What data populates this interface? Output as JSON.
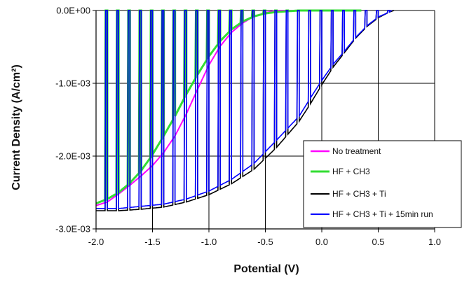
{
  "chart_data": {
    "type": "line",
    "title": "",
    "xlabel": "Potential (V)",
    "ylabel": "Current Density (A/cm²)",
    "xlim": [
      -2.0,
      1.0
    ],
    "ylim": [
      -0.003,
      0.0
    ],
    "grid": true,
    "legend_position": "bottom-right",
    "x_ticks": [
      -2.0,
      -1.5,
      -1.0,
      -0.5,
      0.0,
      0.5,
      1.0
    ],
    "x_tick_labels": [
      "-2.0",
      "-1.5",
      "-1.0",
      "-0.5",
      "0.0",
      "0.5",
      "1.0"
    ],
    "y_ticks": [
      0.0,
      -0.001,
      -0.002,
      -0.003
    ],
    "y_tick_labels": [
      "0.0E+00",
      "-1.0E-03",
      "-2.0E-03",
      "-3.0E-03"
    ],
    "series": [
      {
        "name": "No treatment",
        "color": "#ff00ff",
        "points": [
          [
            -2.0,
            -0.00268
          ],
          [
            -1.9,
            -0.00263
          ],
          [
            -1.8,
            -0.00252
          ],
          [
            -1.7,
            -0.0024
          ],
          [
            -1.6,
            -0.00227
          ],
          [
            -1.5,
            -0.00213
          ],
          [
            -1.4,
            -0.00195
          ],
          [
            -1.3,
            -0.00172
          ],
          [
            -1.2,
            -0.00142
          ],
          [
            -1.1,
            -0.00108
          ],
          [
            -1.0,
            -0.00075
          ],
          [
            -0.9,
            -0.00049
          ],
          [
            -0.8,
            -0.0003
          ],
          [
            -0.7,
            -0.00017
          ],
          [
            -0.6,
            -8e-05
          ],
          [
            -0.5,
            -3e-05
          ],
          [
            -0.4,
            0.0
          ],
          [
            -0.3,
            0.0
          ],
          [
            -0.2,
            0.0
          ],
          [
            0.0,
            0.0
          ]
        ]
      },
      {
        "name": "HF + CH3",
        "color": "#33dd33",
        "dark_value": 0.0,
        "light_envelope": [
          [
            -2.0,
            -0.00265
          ],
          [
            -1.9,
            -0.00259
          ],
          [
            -1.8,
            -0.0025
          ],
          [
            -1.7,
            -0.00237
          ],
          [
            -1.6,
            -0.0022
          ],
          [
            -1.5,
            -0.00198
          ],
          [
            -1.4,
            -0.00172
          ],
          [
            -1.3,
            -0.00145
          ],
          [
            -1.2,
            -0.00115
          ],
          [
            -1.1,
            -0.00088
          ],
          [
            -1.0,
            -0.00063
          ],
          [
            -0.9,
            -0.00042
          ],
          [
            -0.8,
            -0.00026
          ],
          [
            -0.7,
            -0.00015
          ],
          [
            -0.6,
            -8e-05
          ],
          [
            -0.5,
            -4e-05
          ],
          [
            -0.4,
            -2e-05
          ],
          [
            -0.3,
            -1e-05
          ],
          [
            -0.2,
            0.0
          ],
          [
            0.35,
            0.0
          ]
        ]
      },
      {
        "name": "HF + CH3 + Ti",
        "color": "#000000",
        "dark_value": 0.0,
        "light_envelope": [
          [
            -2.0,
            -0.00275
          ],
          [
            -1.8,
            -0.00275
          ],
          [
            -1.6,
            -0.00273
          ],
          [
            -1.4,
            -0.0027
          ],
          [
            -1.2,
            -0.00263
          ],
          [
            -1.0,
            -0.00253
          ],
          [
            -0.8,
            -0.00238
          ],
          [
            -0.6,
            -0.00218
          ],
          [
            -0.4,
            -0.00188
          ],
          [
            -0.2,
            -0.00152
          ],
          [
            -0.1,
            -0.00128
          ],
          [
            0.0,
            -0.00102
          ],
          [
            0.1,
            -0.00078
          ],
          [
            0.2,
            -0.00058
          ],
          [
            0.3,
            -0.00038
          ],
          [
            0.4,
            -0.00022
          ],
          [
            0.5,
            -0.0001
          ],
          [
            0.6,
            -2e-05
          ],
          [
            0.64,
            0.0
          ]
        ]
      },
      {
        "name": "HF + CH3 + Ti + 15min run",
        "color": "#0000ff",
        "dark_value": 0.0,
        "light_envelope": [
          [
            -2.0,
            -0.00272
          ],
          [
            -1.8,
            -0.00272
          ],
          [
            -1.6,
            -0.00269
          ],
          [
            -1.4,
            -0.00266
          ],
          [
            -1.2,
            -0.00259
          ],
          [
            -1.0,
            -0.00248
          ],
          [
            -0.8,
            -0.00232
          ],
          [
            -0.6,
            -0.0021
          ],
          [
            -0.4,
            -0.00178
          ],
          [
            -0.2,
            -0.00145
          ],
          [
            -0.1,
            -0.0012
          ],
          [
            0.0,
            -0.00096
          ],
          [
            0.1,
            -0.00074
          ],
          [
            0.2,
            -0.00056
          ],
          [
            0.3,
            -0.00037
          ],
          [
            0.4,
            -0.00021
          ],
          [
            0.5,
            -9e-05
          ],
          [
            0.6,
            -2e-05
          ],
          [
            0.62,
            0.0
          ]
        ]
      }
    ]
  }
}
